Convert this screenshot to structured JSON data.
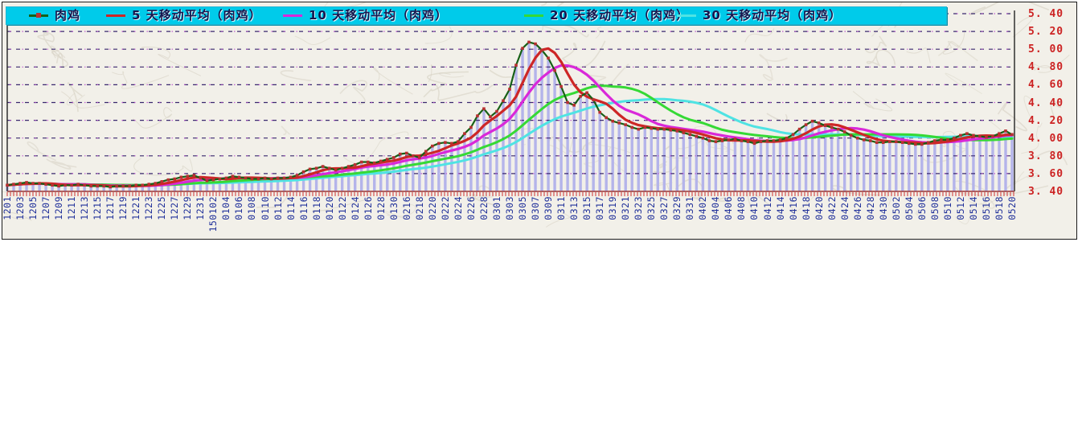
{
  "legend": {
    "background": "#00cbea",
    "text_color": "#16164e",
    "items": [
      {
        "label": "肉鸡",
        "color": "#166016",
        "marker_dot": "#b93030"
      },
      {
        "label": "5 天移动平均（肉鸡）",
        "color": "#cd2626"
      },
      {
        "label": "10 天移动平均（肉鸡）",
        "color": "#d928d9"
      },
      {
        "label": "20 天移动平均（肉鸡）",
        "color": "#35d935"
      },
      {
        "label": "30 天移动平均（肉鸡）",
        "color": "#4fe3e3"
      }
    ]
  },
  "y_axis": {
    "labels": [
      "5. 40",
      "5. 20",
      "5. 00",
      "4. 80",
      "4. 60",
      "4. 40",
      "4. 20",
      "4. 00",
      "3. 80",
      "3. 60",
      "3. 40"
    ],
    "color": "#cc2222"
  },
  "x_axis": {
    "color": "#20309a",
    "tick_color": "#d03030"
  },
  "chart_data": {
    "type": "line",
    "title": "",
    "xlabel": "",
    "ylabel": "",
    "ylim": [
      3.4,
      5.4
    ],
    "y_step": 0.2,
    "grid": "horizontal-dashed",
    "grid_color": "#39286e",
    "legend_position": "top",
    "x_labels": [
      "1201",
      "1203",
      "1205",
      "1207",
      "1209",
      "1211",
      "1213",
      "1215",
      "1217",
      "1219",
      "1221",
      "1223",
      "1225",
      "1227",
      "1229",
      "1231",
      "150102",
      "0104",
      "0106",
      "0108",
      "0110",
      "0112",
      "0114",
      "0116",
      "0118",
      "0120",
      "0122",
      "0124",
      "0126",
      "0128",
      "0130",
      "0216",
      "0218",
      "0220",
      "0222",
      "0224",
      "0226",
      "0228",
      "0301",
      "0303",
      "0305",
      "0307",
      "0309",
      "0311",
      "0313",
      "0315",
      "0317",
      "0319",
      "0321",
      "0323",
      "0325",
      "0327",
      "0329",
      "0331",
      "0402",
      "0404",
      "0406",
      "0408",
      "0410",
      "0412",
      "0414",
      "0416",
      "0418",
      "0420",
      "0422",
      "0424",
      "0426",
      "0428",
      "0430",
      "0502",
      "0504",
      "0506",
      "0508",
      "0510",
      "0512",
      "0514",
      "0516",
      "0518",
      "0520"
    ],
    "x_labels_every_n_points": 2,
    "series": [
      {
        "name": "肉鸡",
        "kind": "daily_price",
        "color": "#166016",
        "marker": "square",
        "marker_color": "#b93030",
        "values": [
          3.47,
          3.48,
          3.49,
          3.5,
          3.49,
          3.49,
          3.48,
          3.47,
          3.46,
          3.47,
          3.47,
          3.48,
          3.47,
          3.46,
          3.46,
          3.46,
          3.45,
          3.46,
          3.46,
          3.46,
          3.47,
          3.47,
          3.48,
          3.49,
          3.51,
          3.53,
          3.54,
          3.56,
          3.57,
          3.58,
          3.55,
          3.52,
          3.53,
          3.54,
          3.55,
          3.57,
          3.56,
          3.55,
          3.54,
          3.54,
          3.55,
          3.54,
          3.55,
          3.55,
          3.56,
          3.58,
          3.62,
          3.65,
          3.66,
          3.68,
          3.66,
          3.64,
          3.66,
          3.68,
          3.7,
          3.73,
          3.73,
          3.72,
          3.74,
          3.76,
          3.78,
          3.82,
          3.83,
          3.8,
          3.78,
          3.85,
          3.91,
          3.94,
          3.95,
          3.94,
          3.96,
          4.05,
          4.12,
          4.25,
          4.33,
          4.24,
          4.3,
          4.42,
          4.55,
          4.82,
          5.01,
          5.08,
          5.06,
          4.99,
          4.9,
          4.76,
          4.58,
          4.4,
          4.37,
          4.47,
          4.51,
          4.43,
          4.29,
          4.23,
          4.19,
          4.17,
          4.15,
          4.12,
          4.1,
          4.12,
          4.11,
          4.1,
          4.1,
          4.09,
          4.08,
          4.06,
          4.04,
          4.02,
          4.0,
          3.97,
          3.96,
          3.97,
          3.98,
          3.99,
          3.97,
          3.96,
          3.94,
          3.96,
          3.97,
          3.97,
          3.98,
          4.0,
          4.04,
          4.1,
          4.15,
          4.19,
          4.17,
          4.14,
          4.12,
          4.1,
          4.07,
          4.03,
          4.0,
          3.98,
          3.97,
          3.95,
          3.95,
          3.96,
          3.96,
          3.95,
          3.94,
          3.93,
          3.93,
          3.95,
          3.97,
          3.98,
          3.98,
          4.0,
          4.03,
          4.05,
          4.03,
          4.02,
          4.01,
          4.02,
          4.05,
          4.08,
          4.04
        ]
      },
      {
        "name": "5 天移动平均（肉鸡）",
        "kind": "moving_average",
        "window": 5,
        "color": "#cd2626",
        "source": "肉鸡"
      },
      {
        "name": "10 天移动平均（肉鸡）",
        "kind": "moving_average",
        "window": 10,
        "color": "#d928d9",
        "source": "肉鸡"
      },
      {
        "name": "20 天移动平均（肉鸡）",
        "kind": "moving_average",
        "window": 20,
        "color": "#35d935",
        "source": "肉鸡"
      },
      {
        "name": "30 天移动平均（肉鸡）",
        "kind": "moving_average",
        "window": 30,
        "color": "#4fe3e3",
        "source": "肉鸡"
      }
    ],
    "drop_bars": {
      "show": true,
      "color": "#b4b4ea",
      "baseline": 3.4,
      "follows": "肉鸡"
    }
  }
}
